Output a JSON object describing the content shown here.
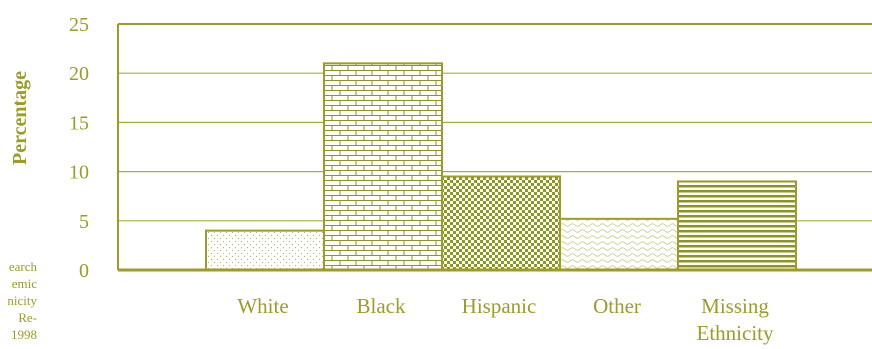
{
  "chart_data": {
    "type": "bar",
    "title": "",
    "xlabel": "",
    "ylabel": "Percentage",
    "ylim": [
      0,
      25
    ],
    "yticks": [
      0,
      5,
      10,
      15,
      20,
      25
    ],
    "grid": true,
    "categories": [
      [
        "White"
      ],
      [
        "Black"
      ],
      [
        "Hispanic"
      ],
      [
        "Other"
      ],
      [
        "Missing",
        "Ethnicity"
      ]
    ],
    "values": [
      4,
      21,
      9.5,
      5.2,
      9
    ],
    "colors": {
      "accent": "#9c9c28",
      "grid": "#a8ad3e"
    }
  },
  "side_note_fragments": [
    "earch",
    "emic",
    "nicity",
    "Re-",
    "1998"
  ]
}
